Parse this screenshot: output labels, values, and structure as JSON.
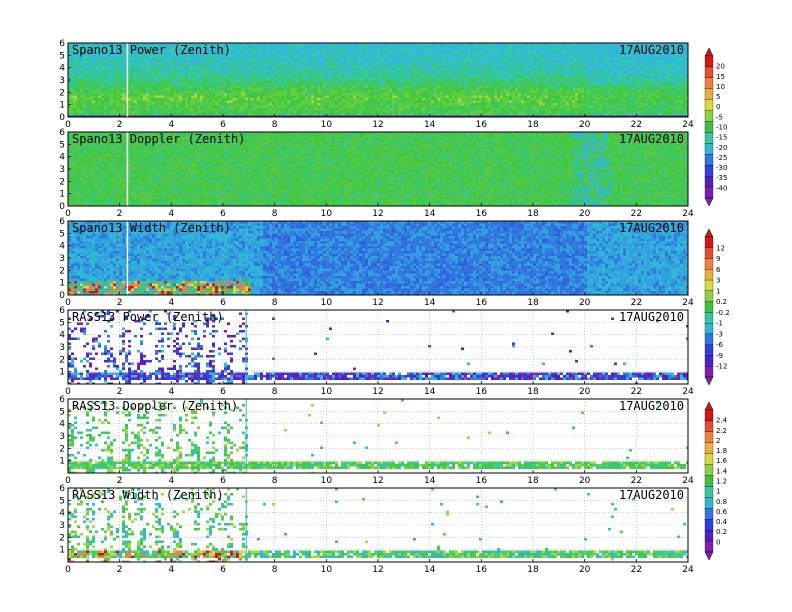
{
  "chart_data": [
    {
      "type": "heatmap",
      "title": "Spano13 Power (Zenith)",
      "date": "17AUG2010",
      "x_ticks": [
        "0",
        "2",
        "4",
        "6",
        "8",
        "10",
        "12",
        "14",
        "16",
        "18",
        "20",
        "22",
        "24"
      ],
      "y_ticks": [
        "0",
        "1",
        "2",
        "3",
        "4",
        "5",
        "6"
      ],
      "xlim": [
        0,
        24
      ],
      "ylim": [
        0,
        6
      ],
      "kind": "spano-power"
    },
    {
      "type": "heatmap",
      "title": "Spano13 Doppler (Zenith)",
      "date": "17AUG2010",
      "x_ticks": [
        "0",
        "2",
        "4",
        "6",
        "8",
        "10",
        "12",
        "14",
        "16",
        "18",
        "20",
        "22",
        "24"
      ],
      "y_ticks": [
        "0",
        "1",
        "2",
        "3",
        "4",
        "5",
        "6"
      ],
      "xlim": [
        0,
        24
      ],
      "ylim": [
        0,
        6
      ],
      "kind": "spano-doppler"
    },
    {
      "type": "heatmap",
      "title": "Spano13 Width (Zenith)",
      "date": "17AUG2010",
      "x_ticks": [
        "0",
        "2",
        "4",
        "6",
        "8",
        "10",
        "12",
        "14",
        "16",
        "18",
        "20",
        "22",
        "24"
      ],
      "y_ticks": [
        "0",
        "1",
        "2",
        "3",
        "4",
        "5",
        "6"
      ],
      "xlim": [
        0,
        24
      ],
      "ylim": [
        0,
        6
      ],
      "kind": "spano-width"
    },
    {
      "type": "heatmap",
      "title": "RASS13 Power (Zenith)",
      "date": "17AUG2010",
      "x_ticks": [
        "0",
        "2",
        "4",
        "6",
        "8",
        "10",
        "12",
        "14",
        "16",
        "18",
        "20",
        "22",
        "24"
      ],
      "y_ticks": [
        "1",
        "2",
        "3",
        "4",
        "5",
        "6"
      ],
      "xlim": [
        0,
        24
      ],
      "ylim": [
        0,
        6
      ],
      "kind": "rass-power"
    },
    {
      "type": "heatmap",
      "title": "RASS13 Doppler (Zenith)",
      "date": "17AUG2010",
      "x_ticks": [
        "0",
        "2",
        "4",
        "6",
        "8",
        "10",
        "12",
        "14",
        "16",
        "18",
        "20",
        "22",
        "24"
      ],
      "y_ticks": [
        "1",
        "2",
        "3",
        "4",
        "5",
        "6"
      ],
      "xlim": [
        0,
        24
      ],
      "ylim": [
        0,
        6
      ],
      "kind": "rass-doppler"
    },
    {
      "type": "heatmap",
      "title": "RASS13 Width (Zenith)",
      "date": "17AUG2010",
      "x_ticks": [
        "0",
        "2",
        "4",
        "6",
        "8",
        "10",
        "12",
        "14",
        "16",
        "18",
        "20",
        "22",
        "24"
      ],
      "y_ticks": [
        "1",
        "2",
        "3",
        "4",
        "5",
        "6"
      ],
      "xlim": [
        0,
        24
      ],
      "ylim": [
        0,
        6
      ],
      "kind": "rass-width"
    }
  ],
  "colorbars": [
    {
      "labels": [
        "20",
        "15",
        "10",
        "5",
        "0",
        "-5",
        "-10",
        "-15",
        "-20",
        "-25",
        "-30",
        "-35",
        "-40"
      ],
      "colors": [
        "#d01818",
        "#e05030",
        "#f08040",
        "#e8b040",
        "#d8d840",
        "#90d040",
        "#40c040",
        "#38c8a0",
        "#30b8d0",
        "#3078e0",
        "#3040d8",
        "#5020c0",
        "#8020b0"
      ]
    },
    {
      "labels": [
        "12",
        "9",
        "6",
        "3",
        "1",
        "0.2",
        "-0.2",
        "-1",
        "-3",
        "-6",
        "-9",
        "-12"
      ],
      "colors": [
        "#d01818",
        "#e05030",
        "#f08040",
        "#e8b040",
        "#d8d840",
        "#90d040",
        "#40c040",
        "#38c8a0",
        "#30b8d0",
        "#3078e0",
        "#3040d8",
        "#5020c0",
        "#8020b0"
      ]
    },
    {
      "labels": [
        "2.4",
        "2.2",
        "2",
        "1.8",
        "1.6",
        "1.4",
        "1.2",
        "1",
        "0.8",
        "0.6",
        "0.4",
        "0.2",
        "0"
      ],
      "colors": [
        "#d01818",
        "#e05030",
        "#f08040",
        "#e8b040",
        "#d8d840",
        "#90d040",
        "#40c040",
        "#38c8a0",
        "#30b8d0",
        "#3078e0",
        "#3040d8",
        "#5020c0",
        "#8020b0"
      ]
    }
  ]
}
